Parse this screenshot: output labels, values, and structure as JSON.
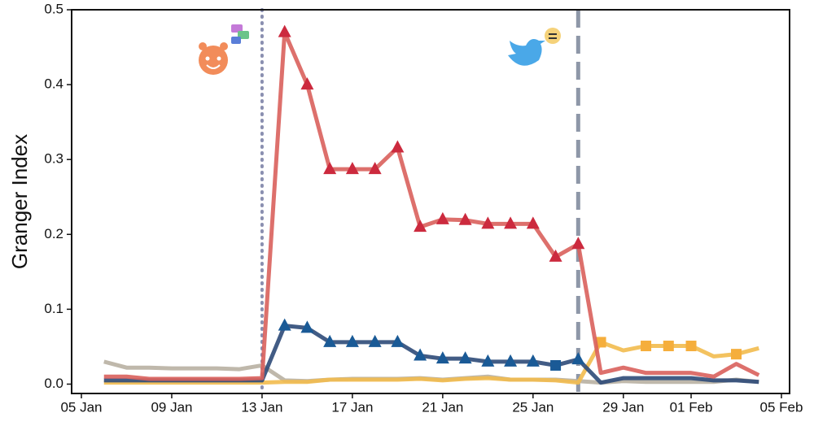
{
  "chart_data": {
    "type": "line",
    "y_label": "Granger Index",
    "categories": [
      "05 Jan",
      null,
      null,
      null,
      "09 Jan",
      null,
      null,
      null,
      "13 Jan",
      null,
      null,
      null,
      "17 Jan",
      null,
      null,
      null,
      "21 Jan",
      null,
      null,
      null,
      "25 Jan",
      null,
      null,
      null,
      "29 Jan",
      null,
      null,
      "01 Feb",
      null,
      null,
      null,
      "05 Feb"
    ],
    "ylim": [
      -0.0125,
      0.5
    ],
    "yticks": [
      {
        "value": 0,
        "label": "0.0"
      },
      0.1,
      0.2,
      0.3,
      0.4,
      0.5
    ],
    "vlines": [
      {
        "index": 8,
        "style": "dotted",
        "color": "#8a8fb0"
      },
      {
        "index": 22,
        "style": "dashed",
        "color": "#8e97a8"
      }
    ],
    "series": [
      {
        "color": "#b8b0a2",
        "values": [
          null,
          0.03,
          0.022,
          0.022,
          0.021,
          0.021,
          0.021,
          0.02,
          0.025,
          0.005,
          0.004,
          0.006,
          0.007,
          0.007,
          0.007,
          0.008,
          0.006,
          0.008,
          0.01,
          0.006,
          0.006,
          0.006,
          0.004,
          0.002,
          0.004,
          0.003,
          0.003,
          0.003,
          0.003,
          0.006,
          0.003,
          null
        ],
        "markers": null
      },
      {
        "color": "#f2bb4e",
        "values": [
          null,
          0.002,
          0.002,
          0.002,
          0.002,
          0.002,
          0.002,
          0.002,
          0.002,
          0.003,
          0.003,
          0.006,
          0.006,
          0.006,
          0.006,
          0.007,
          0.005,
          0.007,
          0.008,
          0.006,
          0.006,
          0.005,
          0.002,
          0.056,
          0.045,
          0.051,
          0.051,
          0.051,
          0.037,
          0.04,
          0.048,
          null
        ],
        "markers": [
          null,
          null,
          null,
          null,
          null,
          null,
          null,
          null,
          null,
          null,
          null,
          null,
          null,
          null,
          null,
          null,
          null,
          null,
          null,
          null,
          null,
          null,
          null,
          "square",
          null,
          "square",
          "square",
          "square",
          null,
          "square",
          null,
          null
        ],
        "marker_color": "#f5ae3c"
      },
      {
        "color": "#2e4a78",
        "values": [
          null,
          0.005,
          0.005,
          0.005,
          0.005,
          0.005,
          0.005,
          0.005,
          0.005,
          0.078,
          0.075,
          0.056,
          0.056,
          0.056,
          0.056,
          0.038,
          0.034,
          0.034,
          0.03,
          0.03,
          0.03,
          0.025,
          0.033,
          0.002,
          0.008,
          0.008,
          0.008,
          0.008,
          0.005,
          0.005,
          0.003,
          null
        ],
        "markers": [
          null,
          null,
          null,
          null,
          null,
          null,
          null,
          null,
          null,
          "triangle",
          "triangle",
          "triangle",
          "triangle",
          "triangle",
          "triangle",
          "triangle",
          "triangle",
          "triangle",
          "triangle",
          "triangle",
          "triangle",
          "square",
          "triangle",
          null,
          null,
          null,
          null,
          null,
          null,
          null,
          null,
          null
        ],
        "marker_color": "#1a5a96"
      },
      {
        "color": "#d9605c",
        "values": [
          null,
          0.01,
          0.01,
          0.007,
          0.007,
          0.007,
          0.007,
          0.007,
          0.008,
          0.47,
          0.4,
          0.287,
          0.287,
          0.287,
          0.316,
          0.21,
          0.22,
          0.219,
          0.214,
          0.214,
          0.214,
          0.17,
          0.187,
          0.015,
          0.022,
          0.015,
          0.015,
          0.015,
          0.01,
          0.027,
          0.012,
          null
        ],
        "markers": [
          null,
          null,
          null,
          null,
          null,
          null,
          null,
          null,
          null,
          "triangle",
          "triangle",
          "triangle",
          "triangle",
          "triangle",
          "triangle",
          "triangle",
          "triangle",
          "triangle",
          "triangle",
          "triangle",
          "triangle",
          "triangle",
          "triangle",
          null,
          null,
          null,
          null,
          null,
          null,
          null,
          null,
          null
        ],
        "marker_color": "#cc2a3e"
      }
    ]
  }
}
